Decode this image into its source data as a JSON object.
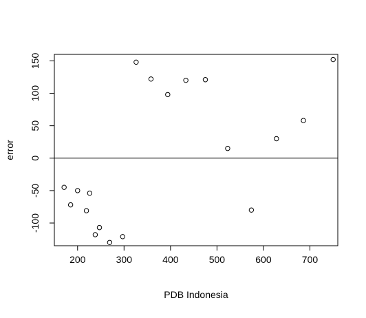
{
  "chart_data": {
    "type": "scatter",
    "title": "",
    "xlabel": "PDB Indonesia",
    "ylabel": "error",
    "xlim": [
      150,
      760
    ],
    "ylim": [
      -135,
      160
    ],
    "x_ticks": [
      200,
      300,
      400,
      500,
      600,
      700
    ],
    "y_ticks": [
      -100,
      -50,
      0,
      50,
      100,
      150
    ],
    "grid": false,
    "reference_line": {
      "orientation": "horizontal",
      "y": 0
    },
    "points": [
      {
        "x": 171,
        "y": -45
      },
      {
        "x": 185,
        "y": -72
      },
      {
        "x": 200,
        "y": -50
      },
      {
        "x": 219,
        "y": -81
      },
      {
        "x": 226,
        "y": -54
      },
      {
        "x": 238,
        "y": -118
      },
      {
        "x": 247,
        "y": -107
      },
      {
        "x": 269,
        "y": -130
      },
      {
        "x": 297,
        "y": -121
      },
      {
        "x": 326,
        "y": 148
      },
      {
        "x": 358,
        "y": 122
      },
      {
        "x": 394,
        "y": 98
      },
      {
        "x": 433,
        "y": 120
      },
      {
        "x": 475,
        "y": 121
      },
      {
        "x": 523,
        "y": 15
      },
      {
        "x": 574,
        "y": -80
      },
      {
        "x": 628,
        "y": 30
      },
      {
        "x": 686,
        "y": 58
      },
      {
        "x": 750,
        "y": 152
      }
    ],
    "colors": {
      "points": "#000000",
      "axes": "#000000",
      "background": "#ffffff"
    }
  }
}
